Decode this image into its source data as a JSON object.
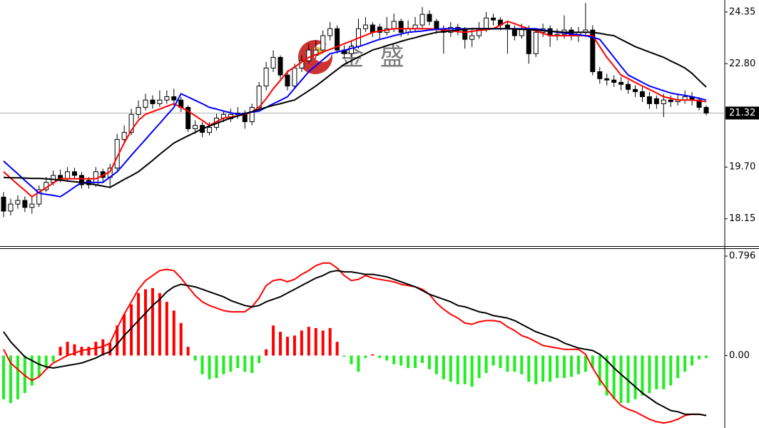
{
  "chart_data": [
    {
      "type": "candlestick",
      "watermark": "金 盛",
      "open": [
        18.8,
        18.38,
        18.59,
        18.7,
        18.49,
        18.59,
        19.02,
        19.24,
        19.45,
        19.35,
        19.56,
        19.45,
        19.3,
        19.17,
        19.56,
        19.39,
        19.67,
        20.53,
        20.74,
        21.28,
        21.49,
        21.71,
        21.6,
        21.71,
        21.81,
        21.71,
        21.49,
        20.85,
        20.95,
        20.74,
        20.89,
        21.17,
        21.15,
        21.28,
        21.32,
        21.06,
        21.49,
        22.13,
        22.67,
        22.99,
        22.46,
        22.13,
        22.67,
        22.89,
        23.05,
        23.21,
        23.64,
        23.85,
        23.21,
        23.1,
        23.32,
        23.85,
        23.96,
        23.9,
        23.74,
        23.85,
        24.07,
        23.74,
        23.85,
        23.96,
        24.28,
        24.07,
        23.85,
        23.74,
        23.89,
        23.81,
        23.53,
        23.64,
        23.85,
        24.17,
        24.11,
        23.96,
        23.85,
        23.64,
        23.85,
        23.1,
        23.74,
        23.85,
        23.64,
        23.68,
        23.81,
        23.64,
        23.74,
        23.81,
        22.56,
        22.35,
        22.31,
        22.24,
        22.18,
        22.03,
        21.96,
        21.81,
        21.75,
        21.6,
        21.71,
        21.66,
        21.71,
        21.81,
        21.71,
        21.49
      ],
      "high": [
        18.95,
        18.75,
        18.85,
        18.82,
        18.8,
        19.15,
        19.4,
        19.6,
        19.62,
        19.7,
        19.68,
        19.55,
        19.4,
        19.7,
        19.65,
        19.8,
        20.7,
        20.95,
        21.45,
        21.7,
        21.9,
        21.85,
        22.0,
        22.0,
        22.05,
        21.8,
        21.55,
        21.1,
        21.05,
        21.05,
        21.3,
        21.4,
        21.45,
        21.5,
        21.4,
        21.6,
        22.25,
        22.85,
        23.2,
        23.05,
        22.6,
        22.8,
        23.05,
        23.4,
        23.5,
        23.8,
        24.05,
        23.95,
        23.35,
        23.5,
        24.15,
        24.2,
        24.05,
        24.0,
        24.2,
        24.3,
        24.15,
        24.1,
        24.2,
        24.5,
        24.4,
        24.15,
        23.95,
        24.05,
        24.0,
        23.9,
        23.85,
        24.05,
        24.35,
        24.3,
        24.2,
        24.05,
        23.95,
        24.0,
        23.95,
        23.85,
        24.0,
        23.95,
        23.85,
        24.25,
        23.9,
        23.9,
        24.62,
        23.95,
        22.7,
        22.5,
        22.45,
        22.4,
        22.3,
        22.15,
        22.1,
        21.95,
        21.85,
        21.9,
        21.85,
        21.9,
        22.0,
        21.95,
        21.8,
        21.55
      ],
      "low": [
        18.2,
        18.25,
        18.45,
        18.35,
        18.3,
        18.5,
        18.95,
        19.15,
        19.25,
        19.28,
        19.35,
        19.05,
        19.05,
        19.1,
        19.25,
        19.1,
        19.6,
        20.4,
        20.65,
        21.15,
        21.4,
        21.45,
        21.5,
        21.6,
        21.55,
        21.35,
        20.75,
        20.7,
        20.6,
        20.65,
        20.8,
        21.05,
        21.05,
        21.15,
        20.85,
        20.95,
        21.4,
        22.0,
        22.55,
        22.35,
        22.0,
        22.05,
        22.55,
        22.8,
        22.95,
        23.1,
        23.5,
        23.1,
        22.95,
        23.0,
        23.25,
        23.75,
        23.6,
        23.55,
        23.65,
        23.75,
        23.6,
        23.65,
        23.75,
        23.85,
        23.95,
        23.7,
        23.1,
        23.6,
        23.65,
        23.25,
        23.3,
        23.55,
        23.75,
        23.95,
        23.8,
        23.1,
        23.5,
        23.55,
        22.8,
        23.0,
        23.6,
        23.3,
        23.5,
        23.55,
        23.5,
        23.45,
        23.6,
        22.45,
        22.2,
        22.15,
        22.1,
        22.0,
        21.9,
        21.8,
        21.65,
        21.45,
        21.45,
        21.2,
        21.5,
        21.55,
        21.6,
        21.55,
        21.4,
        21.25
      ],
      "close": [
        18.38,
        18.59,
        18.7,
        18.49,
        18.59,
        19.02,
        19.24,
        19.45,
        19.35,
        19.56,
        19.45,
        19.17,
        19.17,
        19.56,
        19.39,
        19.67,
        20.53,
        20.74,
        21.28,
        21.49,
        21.71,
        21.6,
        21.71,
        21.81,
        21.71,
        21.49,
        20.85,
        20.95,
        20.74,
        20.89,
        21.17,
        21.28,
        21.28,
        21.32,
        21.06,
        21.49,
        22.13,
        22.67,
        22.99,
        22.46,
        22.13,
        22.67,
        22.89,
        23.21,
        23.21,
        23.64,
        23.85,
        23.21,
        23.1,
        23.32,
        23.85,
        23.96,
        23.74,
        23.74,
        23.85,
        24.07,
        23.74,
        23.85,
        23.96,
        24.28,
        24.07,
        23.85,
        23.74,
        23.89,
        23.81,
        23.53,
        23.64,
        23.85,
        24.17,
        24.11,
        23.96,
        23.85,
        23.64,
        23.85,
        23.1,
        23.74,
        23.85,
        23.64,
        23.68,
        23.81,
        23.64,
        23.74,
        23.81,
        22.56,
        22.35,
        22.31,
        22.24,
        22.18,
        22.03,
        21.96,
        21.81,
        21.6,
        21.6,
        21.71,
        21.66,
        21.71,
        21.81,
        21.71,
        21.49,
        21.32
      ],
      "up_color": "#ffffff",
      "down_color": "#000000",
      "series": [
        {
          "color": "#ff0000",
          "values": [
            19.56,
            19.37,
            19.18,
            19.0,
            18.81,
            18.95,
            19.08,
            19.22,
            19.35,
            19.35,
            19.35,
            19.35,
            19.35,
            19.35,
            19.45,
            19.56,
            20.0,
            20.42,
            20.8,
            21.1,
            21.28,
            21.36,
            21.44,
            21.52,
            21.6,
            21.49,
            21.38,
            21.24,
            21.1,
            20.95,
            21.06,
            21.17,
            21.2,
            21.24,
            21.28,
            21.35,
            21.5,
            21.75,
            22.05,
            22.3,
            22.56,
            22.7,
            22.85,
            22.99,
            23.07,
            23.15,
            23.23,
            23.31,
            23.4,
            23.48,
            23.57,
            23.65,
            23.74,
            23.78,
            23.81,
            23.85,
            23.85,
            23.85,
            23.85,
            23.85,
            23.85,
            23.83,
            23.81,
            23.79,
            23.76,
            23.74,
            23.77,
            23.8,
            23.82,
            23.85,
            23.96,
            24.07,
            24.0,
            23.92,
            23.85,
            23.78,
            23.71,
            23.64,
            23.64,
            23.64,
            23.64,
            23.64,
            23.64,
            23.64,
            23.31,
            22.99,
            22.73,
            22.46,
            22.35,
            22.24,
            22.13,
            22.03,
            21.92,
            21.81,
            21.76,
            21.71,
            21.71,
            21.71,
            21.69,
            21.66
          ]
        },
        {
          "color": "#0000ff",
          "values": [
            19.88,
            19.69,
            19.5,
            19.3,
            19.11,
            18.92,
            18.88,
            18.85,
            18.81,
            18.95,
            19.1,
            19.24,
            19.24,
            19.24,
            19.24,
            19.4,
            19.56,
            19.8,
            20.05,
            20.29,
            20.53,
            20.77,
            21.01,
            21.25,
            21.49,
            21.9,
            21.8,
            21.7,
            21.6,
            21.49,
            21.44,
            21.38,
            21.33,
            21.28,
            21.31,
            21.35,
            21.38,
            21.49,
            21.6,
            21.7,
            21.81,
            22.06,
            22.31,
            22.56,
            22.74,
            22.92,
            23.1,
            23.15,
            23.2,
            23.26,
            23.31,
            23.38,
            23.46,
            23.53,
            23.58,
            23.64,
            23.69,
            23.74,
            23.76,
            23.78,
            23.81,
            23.83,
            23.85,
            23.85,
            23.85,
            23.85,
            23.85,
            23.85,
            23.85,
            23.85,
            23.85,
            23.85,
            23.85,
            23.85,
            23.85,
            23.85,
            23.81,
            23.78,
            23.74,
            23.72,
            23.69,
            23.67,
            23.64,
            23.59,
            23.53,
            23.26,
            22.99,
            22.72,
            22.46,
            22.35,
            22.24,
            22.13,
            22.06,
            21.99,
            21.92,
            21.88,
            21.85,
            21.81,
            21.76,
            21.71
          ]
        },
        {
          "color": "#000000",
          "values": [
            19.39,
            19.38,
            19.38,
            19.37,
            19.36,
            19.36,
            19.35,
            19.33,
            19.31,
            19.28,
            19.26,
            19.24,
            19.2,
            19.17,
            19.13,
            19.09,
            19.21,
            19.33,
            19.44,
            19.56,
            19.73,
            19.9,
            20.08,
            20.25,
            20.42,
            20.53,
            20.64,
            20.74,
            20.85,
            20.93,
            21.01,
            21.09,
            21.17,
            21.23,
            21.3,
            21.36,
            21.43,
            21.49,
            21.55,
            21.6,
            21.66,
            21.71,
            21.85,
            21.99,
            22.13,
            22.29,
            22.46,
            22.62,
            22.78,
            22.89,
            23.0,
            23.1,
            23.21,
            23.27,
            23.34,
            23.4,
            23.47,
            23.53,
            23.58,
            23.64,
            23.69,
            23.74,
            23.76,
            23.78,
            23.81,
            23.83,
            23.85,
            23.85,
            23.85,
            23.85,
            23.85,
            23.85,
            23.84,
            23.83,
            23.82,
            23.81,
            23.79,
            23.77,
            23.76,
            23.74,
            23.74,
            23.74,
            23.74,
            23.74,
            23.71,
            23.67,
            23.64,
            23.53,
            23.42,
            23.31,
            23.23,
            23.15,
            23.07,
            22.99,
            22.88,
            22.78,
            22.67,
            22.51,
            22.3,
            22.1
          ]
        }
      ],
      "last_price": 21.32,
      "ylim": [
        17.33,
        24.71
      ],
      "yticks": [
        18.15,
        {
          "value": 19.7,
          "label": "19.70"
        },
        {
          "value": 22.8,
          "label": "22.80"
        },
        24.35
      ]
    },
    {
      "type": "macd",
      "histogram": {
        "positive_color": "#ff0000",
        "negative_color": "#22ee22",
        "values": [
          -0.35,
          -0.38,
          -0.35,
          -0.3,
          -0.24,
          -0.17,
          -0.1,
          -0.05,
          0.07,
          0.11,
          0.09,
          0.07,
          0.07,
          0.11,
          0.13,
          0.1,
          0.24,
          0.33,
          0.41,
          0.5,
          0.53,
          0.54,
          0.5,
          0.43,
          0.36,
          0.26,
          0.07,
          -0.04,
          -0.15,
          -0.19,
          -0.18,
          -0.15,
          -0.13,
          -0.1,
          -0.13,
          -0.14,
          -0.06,
          0.05,
          0.24,
          0.19,
          0.15,
          0.16,
          0.2,
          0.23,
          0.22,
          0.2,
          0.22,
          0.11,
          -0.01,
          -0.07,
          -0.13,
          -0.02,
          0.01,
          -0.02,
          -0.04,
          -0.07,
          -0.08,
          -0.1,
          -0.1,
          -0.06,
          -0.11,
          -0.15,
          -0.19,
          -0.21,
          -0.23,
          -0.23,
          -0.25,
          -0.18,
          -0.14,
          -0.08,
          -0.1,
          -0.13,
          -0.13,
          -0.15,
          -0.21,
          -0.23,
          -0.21,
          -0.21,
          -0.18,
          -0.18,
          -0.17,
          -0.15,
          -0.13,
          -0.1,
          -0.24,
          -0.32,
          -0.35,
          -0.38,
          -0.38,
          -0.35,
          -0.32,
          -0.3,
          -0.27,
          -0.27,
          -0.24,
          -0.18,
          -0.13,
          -0.08,
          -0.03,
          -0.02
        ]
      },
      "series": [
        {
          "color": "#ff0000",
          "values": [
            0.05,
            -0.06,
            -0.11,
            -0.16,
            -0.2,
            -0.17,
            -0.11,
            -0.06,
            -0.03,
            0.0,
            0.02,
            0.04,
            0.05,
            0.06,
            0.07,
            0.1,
            0.22,
            0.33,
            0.43,
            0.53,
            0.6,
            0.64,
            0.68,
            0.69,
            0.68,
            0.62,
            0.55,
            0.48,
            0.43,
            0.4,
            0.38,
            0.36,
            0.35,
            0.35,
            0.35,
            0.39,
            0.46,
            0.56,
            0.6,
            0.61,
            0.59,
            0.61,
            0.65,
            0.68,
            0.72,
            0.74,
            0.74,
            0.7,
            0.64,
            0.6,
            0.61,
            0.64,
            0.62,
            0.61,
            0.6,
            0.59,
            0.57,
            0.56,
            0.55,
            0.53,
            0.49,
            0.42,
            0.37,
            0.33,
            0.3,
            0.26,
            0.25,
            0.27,
            0.28,
            0.28,
            0.27,
            0.23,
            0.2,
            0.16,
            0.14,
            0.11,
            0.08,
            0.07,
            0.06,
            0.05,
            0.05,
            0.05,
            0.01,
            -0.1,
            -0.19,
            -0.27,
            -0.34,
            -0.4,
            -0.43,
            -0.45,
            -0.48,
            -0.51,
            -0.53,
            -0.54,
            -0.53,
            -0.51,
            -0.48,
            -0.47,
            -0.47,
            -0.48
          ]
        },
        {
          "color": "#000000",
          "values": [
            0.19,
            0.11,
            0.05,
            -0.01,
            -0.04,
            -0.07,
            -0.09,
            -0.1,
            -0.09,
            -0.08,
            -0.07,
            -0.06,
            -0.04,
            -0.02,
            0.01,
            0.03,
            0.09,
            0.16,
            0.22,
            0.28,
            0.34,
            0.4,
            0.45,
            0.51,
            0.55,
            0.57,
            0.56,
            0.55,
            0.53,
            0.51,
            0.49,
            0.47,
            0.44,
            0.42,
            0.4,
            0.39,
            0.4,
            0.43,
            0.45,
            0.47,
            0.5,
            0.53,
            0.56,
            0.59,
            0.62,
            0.64,
            0.67,
            0.68,
            0.67,
            0.67,
            0.66,
            0.65,
            0.65,
            0.64,
            0.63,
            0.61,
            0.59,
            0.57,
            0.55,
            0.52,
            0.49,
            0.47,
            0.45,
            0.43,
            0.4,
            0.39,
            0.37,
            0.35,
            0.34,
            0.32,
            0.31,
            0.3,
            0.28,
            0.25,
            0.22,
            0.19,
            0.17,
            0.15,
            0.13,
            0.1,
            0.08,
            0.06,
            0.05,
            0.04,
            0.01,
            -0.04,
            -0.1,
            -0.15,
            -0.2,
            -0.25,
            -0.3,
            -0.34,
            -0.38,
            -0.41,
            -0.44,
            -0.45,
            -0.47,
            -0.47,
            -0.47,
            -0.48
          ]
        }
      ],
      "ylim": [
        -0.58,
        0.853
      ],
      "yticks": [
        {
          "value": 0,
          "label": "0.00"
        },
        0.796
      ]
    }
  ]
}
